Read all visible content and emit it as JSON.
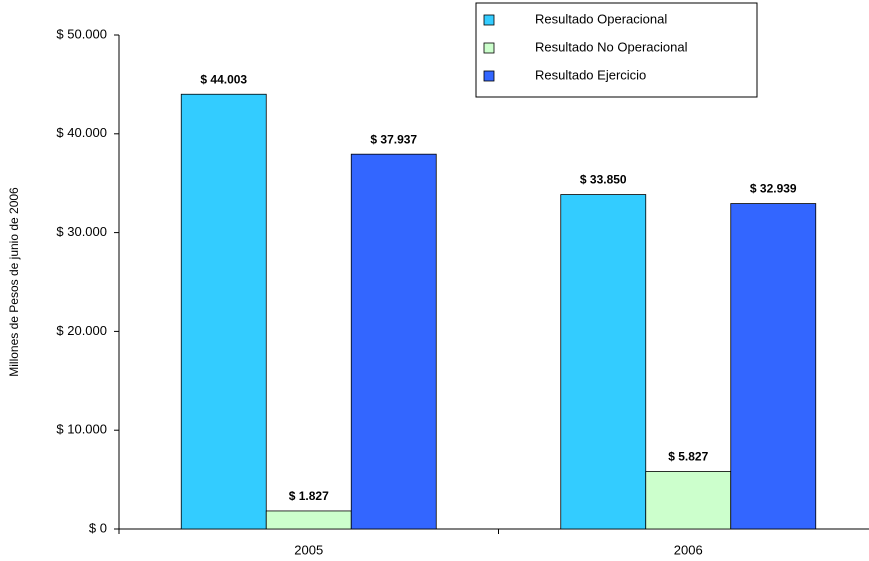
{
  "chart_data": {
    "type": "bar",
    "y_label": "Millones de Pesos de junio de 2006",
    "categories": [
      "2005",
      "2006"
    ],
    "series": [
      {
        "name": "Resultado Operacional",
        "color": "#33ccff",
        "values": [
          44003,
          33850
        ],
        "value_labels": [
          "$ 44.003",
          "$ 33.850"
        ]
      },
      {
        "name": "Resultado No Operacional",
        "color": "#ccffcc",
        "values": [
          1827,
          5827
        ],
        "value_labels": [
          "$ 1.827",
          "$ 5.827"
        ]
      },
      {
        "name": "Resultado Ejercicio",
        "color": "#3366ff",
        "values": [
          37937,
          32939
        ],
        "value_labels": [
          "$ 37.937",
          "$ 32.939"
        ]
      }
    ],
    "ylim": [
      0,
      50000
    ],
    "yticks": [
      {
        "value": 0,
        "label": "$ 0"
      },
      {
        "value": 10000,
        "label": "$ 10.000"
      },
      {
        "value": 20000,
        "label": "$ 20.000"
      },
      {
        "value": 30000,
        "label": "$ 30.000"
      },
      {
        "value": 40000,
        "label": "$ 40.000"
      },
      {
        "value": 50000,
        "label": "$ 50.000"
      }
    ],
    "grid": false,
    "legend": "top-right"
  }
}
